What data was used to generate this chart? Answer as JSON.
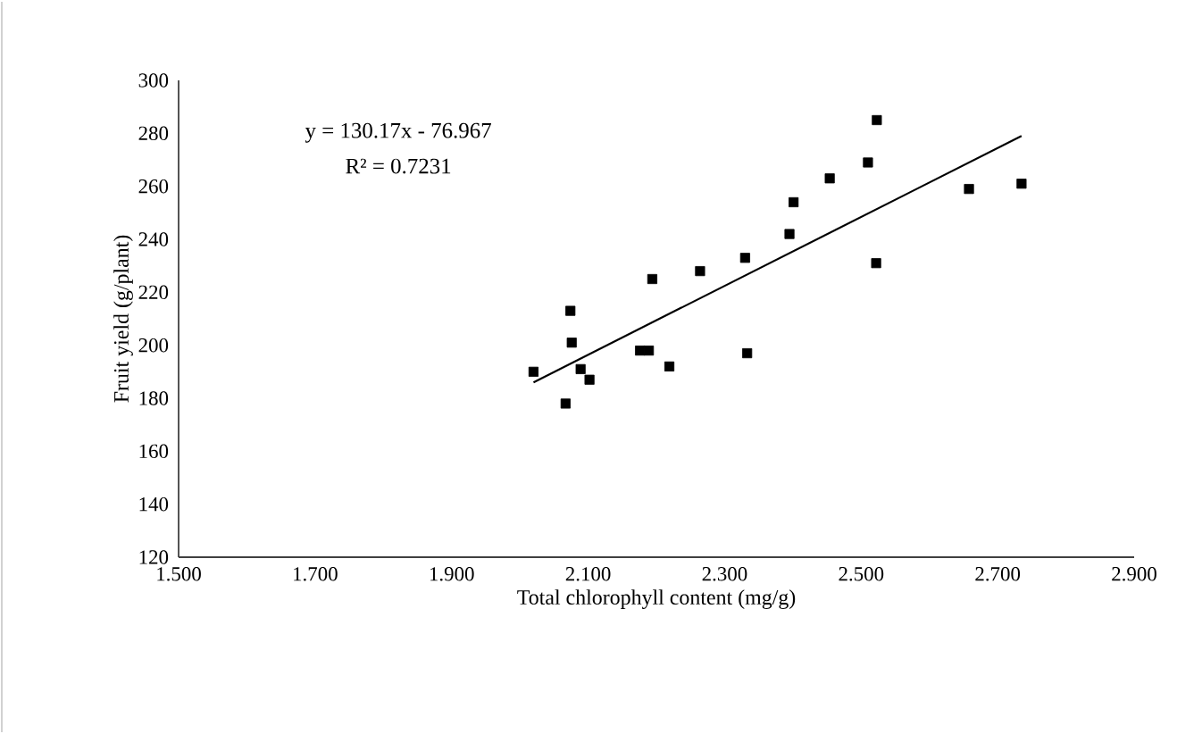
{
  "chart_data": {
    "type": "scatter",
    "xlabel": "Total chlorophyll content (mg/g)",
    "ylabel": "Fruit yield (g/plant)",
    "xlim": [
      1.5,
      2.9
    ],
    "ylim": [
      120,
      300
    ],
    "xticks": [
      {
        "value": 1.5,
        "label": "1.500"
      },
      {
        "value": 1.7,
        "label": "1.700"
      },
      {
        "value": 1.9,
        "label": "1.900"
      },
      {
        "value": 2.1,
        "label": "2.100"
      },
      {
        "value": 2.3,
        "label": "2.300"
      },
      {
        "value": 2.5,
        "label": "2.500"
      },
      {
        "value": 2.7,
        "label": "2.700"
      },
      {
        "value": 2.9,
        "label": "2.900"
      }
    ],
    "yticks": [
      120,
      140,
      160,
      180,
      200,
      220,
      240,
      260,
      280,
      300
    ],
    "marker": "square",
    "grid": false,
    "legend": false,
    "annotations": [
      "y = 130.17x - 76.967",
      "R² = 0.7231"
    ],
    "series": [
      {
        "color": "#000000",
        "x": [
          2.02,
          2.067,
          2.074,
          2.076,
          2.089,
          2.102,
          2.176,
          2.189,
          2.194,
          2.219,
          2.264,
          2.33,
          2.333,
          2.395,
          2.401,
          2.454,
          2.51,
          2.523,
          2.522,
          2.658,
          2.735
        ],
        "values": [
          190,
          178,
          213,
          201,
          191,
          187,
          198,
          198,
          225,
          192,
          228,
          233,
          197,
          242,
          254,
          263,
          269,
          285,
          231,
          259,
          261
        ]
      },
      {
        "type": "line",
        "color": "#000000",
        "marker": "none",
        "line_style": "solid",
        "x": [
          2.02,
          2.735
        ],
        "values": [
          186,
          279
        ]
      }
    ]
  }
}
